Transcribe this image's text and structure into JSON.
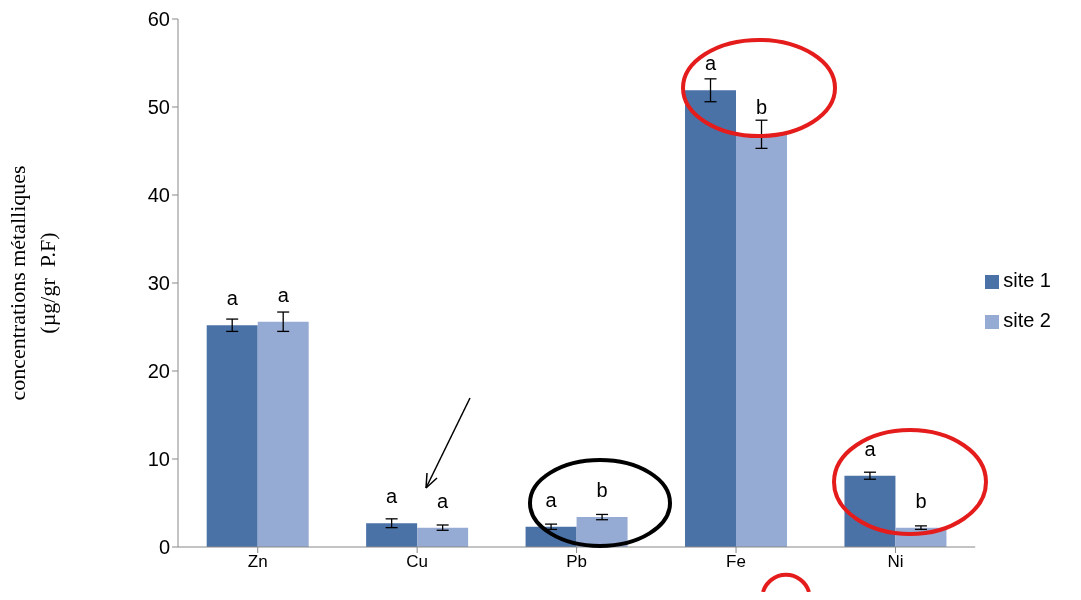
{
  "chart_data": {
    "type": "bar",
    "ylabel": "concentrations métalliques\n(µg/gr  P.F)",
    "categories": [
      "Zn",
      "Cu",
      "Pb",
      "Fe",
      "Ni"
    ],
    "series": [
      {
        "name": "site 1",
        "color": "#4a72a6",
        "values": [
          25.2,
          2.7,
          2.3,
          51.9,
          8.1
        ],
        "errors": [
          0.7,
          0.5,
          0.3,
          1.3,
          0.4
        ],
        "value_labels": [
          "a",
          "a",
          "a",
          "a",
          "a"
        ]
      },
      {
        "name": "site 2",
        "color": "#96abd3",
        "values": [
          25.6,
          2.2,
          3.4,
          46.9,
          2.2
        ],
        "errors": [
          1.1,
          0.3,
          0.3,
          1.6,
          0.2
        ],
        "value_labels": [
          "a",
          "a",
          "b",
          "b",
          "b"
        ]
      }
    ],
    "ylim": [
      0,
      60
    ],
    "yticks": [
      0,
      10,
      20,
      30,
      40,
      50,
      60
    ],
    "legend": "right"
  }
}
